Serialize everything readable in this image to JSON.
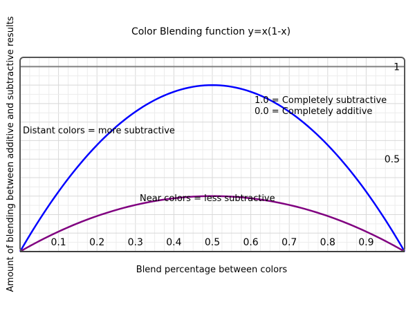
{
  "chart_data": {
    "type": "line",
    "title": "Color Blending function y=x(1-x)",
    "xlabel": "Blend percentage between colors",
    "ylabel": "Amount of blending between additive and subtractive results",
    "xlim": [
      0,
      1
    ],
    "ylim": [
      0,
      1.05
    ],
    "grid": true,
    "x_ticks": [
      0.1,
      0.2,
      0.3,
      0.4,
      0.5,
      0.6,
      0.7,
      0.8,
      0.9
    ],
    "y_ticks": [
      0.5,
      1
    ],
    "x_tick_labels": [
      "0.1",
      "0.2",
      "0.3",
      "0.4",
      "0.5",
      "0.6",
      "0.7",
      "0.8",
      "0.9"
    ],
    "y_tick_labels": [
      "0.5",
      "1"
    ],
    "reference_line": {
      "y": 1,
      "color": "#808080"
    },
    "series": [
      {
        "color": "#0000ff",
        "x": [
          0,
          0.1,
          0.2,
          0.3,
          0.4,
          0.5,
          0.6,
          0.7,
          0.8,
          0.9,
          1
        ],
        "y": [
          0,
          0.32,
          0.576,
          0.756,
          0.864,
          0.9,
          0.864,
          0.756,
          0.576,
          0.32,
          0
        ]
      },
      {
        "color": "#800080",
        "x": [
          0,
          0.1,
          0.2,
          0.3,
          0.4,
          0.5,
          0.6,
          0.7,
          0.8,
          0.9,
          1
        ],
        "y": [
          0,
          0.108,
          0.192,
          0.252,
          0.288,
          0.3,
          0.288,
          0.252,
          0.192,
          0.108,
          0
        ]
      }
    ],
    "annotations": {
      "subtractive_legend": "1.0 = Completely subtractive",
      "additive_legend": "0.0 = Completely additive",
      "distant": "Distant colors = more subtractive",
      "near": "Near colors = less subtractive"
    }
  }
}
